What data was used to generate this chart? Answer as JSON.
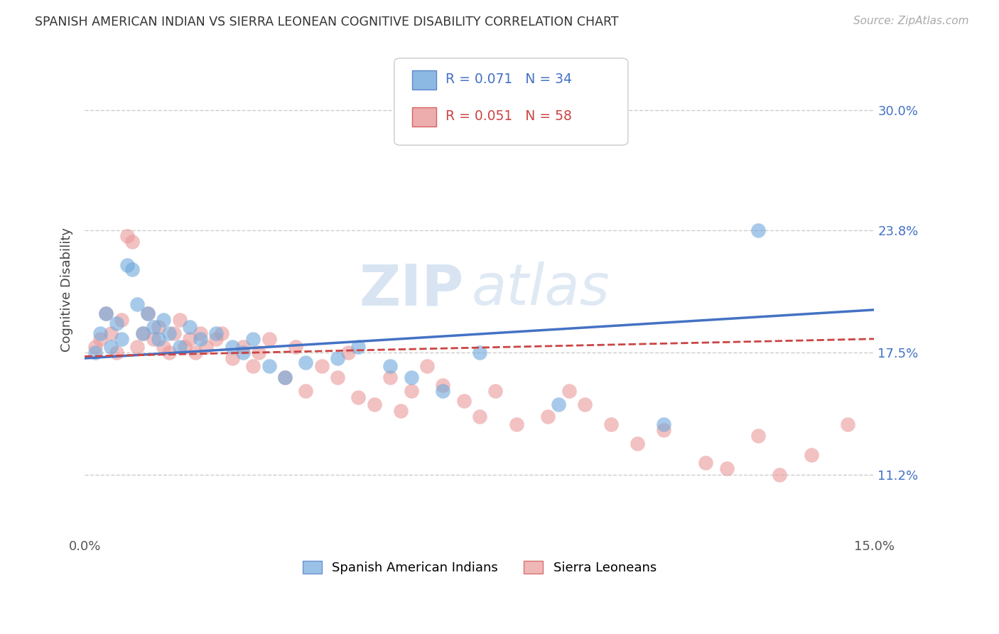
{
  "title": "SPANISH AMERICAN INDIAN VS SIERRA LEONEAN COGNITIVE DISABILITY CORRELATION CHART",
  "source": "Source: ZipAtlas.com",
  "ylabel": "Cognitive Disability",
  "ytick_labels": [
    "11.2%",
    "17.5%",
    "23.8%",
    "30.0%"
  ],
  "ytick_values": [
    0.112,
    0.175,
    0.238,
    0.3
  ],
  "xlim": [
    0.0,
    0.15
  ],
  "ylim": [
    0.08,
    0.335
  ],
  "r_blue": 0.071,
  "n_blue": 34,
  "r_pink": 0.051,
  "n_pink": 58,
  "color_blue": "#6fa8dc",
  "color_pink": "#ea9999",
  "trendline_blue": "#4472c4",
  "trendline_pink": "#cc4444",
  "legend_label_blue": "Spanish American Indians",
  "legend_label_pink": "Sierra Leoneans",
  "blue_x": [
    0.002,
    0.003,
    0.004,
    0.005,
    0.006,
    0.007,
    0.008,
    0.009,
    0.01,
    0.011,
    0.012,
    0.013,
    0.014,
    0.015,
    0.016,
    0.018,
    0.02,
    0.022,
    0.025,
    0.028,
    0.03,
    0.032,
    0.035,
    0.038,
    0.042,
    0.048,
    0.052,
    0.058,
    0.062,
    0.068,
    0.075,
    0.09,
    0.11,
    0.128
  ],
  "blue_y": [
    0.175,
    0.185,
    0.195,
    0.178,
    0.19,
    0.182,
    0.22,
    0.218,
    0.2,
    0.185,
    0.195,
    0.188,
    0.182,
    0.192,
    0.185,
    0.178,
    0.188,
    0.182,
    0.185,
    0.178,
    0.175,
    0.182,
    0.168,
    0.162,
    0.17,
    0.172,
    0.178,
    0.168,
    0.162,
    0.155,
    0.175,
    0.148,
    0.138,
    0.238
  ],
  "pink_x": [
    0.002,
    0.003,
    0.004,
    0.005,
    0.006,
    0.007,
    0.008,
    0.009,
    0.01,
    0.011,
    0.012,
    0.013,
    0.014,
    0.015,
    0.016,
    0.017,
    0.018,
    0.019,
    0.02,
    0.021,
    0.022,
    0.023,
    0.025,
    0.026,
    0.028,
    0.03,
    0.032,
    0.033,
    0.035,
    0.038,
    0.04,
    0.042,
    0.045,
    0.048,
    0.05,
    0.052,
    0.055,
    0.058,
    0.06,
    0.062,
    0.065,
    0.068,
    0.072,
    0.075,
    0.078,
    0.082,
    0.088,
    0.092,
    0.095,
    0.1,
    0.105,
    0.11,
    0.118,
    0.122,
    0.128,
    0.132,
    0.138,
    0.145
  ],
  "pink_y": [
    0.178,
    0.182,
    0.195,
    0.185,
    0.175,
    0.192,
    0.235,
    0.232,
    0.178,
    0.185,
    0.195,
    0.182,
    0.188,
    0.178,
    0.175,
    0.185,
    0.192,
    0.178,
    0.182,
    0.175,
    0.185,
    0.178,
    0.182,
    0.185,
    0.172,
    0.178,
    0.168,
    0.175,
    0.182,
    0.162,
    0.178,
    0.155,
    0.168,
    0.162,
    0.175,
    0.152,
    0.148,
    0.162,
    0.145,
    0.155,
    0.168,
    0.158,
    0.15,
    0.142,
    0.155,
    0.138,
    0.142,
    0.155,
    0.148,
    0.138,
    0.128,
    0.135,
    0.118,
    0.115,
    0.132,
    0.112,
    0.122,
    0.138
  ],
  "watermark_line1": "ZIP",
  "watermark_line2": "atlas",
  "bg_color": "#ffffff",
  "grid_color": "#cccccc"
}
